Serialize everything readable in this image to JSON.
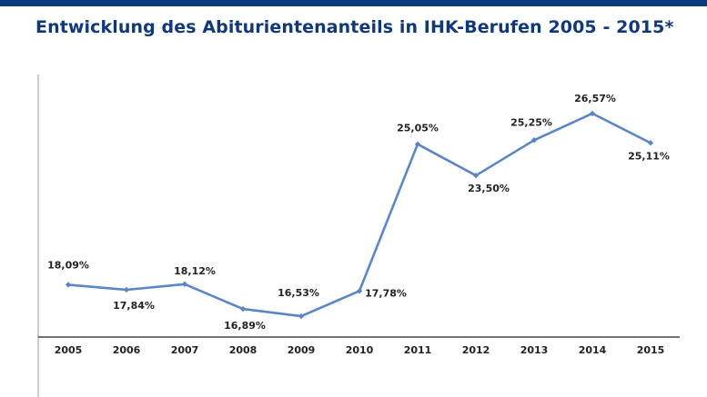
{
  "title": "Entwicklung des Abiturientenanteils in IHK-Berufen 2005 - 2015*",
  "colors": {
    "top_bar": "#0b3a7e",
    "title": "#10387a",
    "line": "#5b86c6",
    "axis": "#444444",
    "label": "#222222"
  },
  "chart_data": {
    "type": "line",
    "title": "Entwicklung des Abiturientenanteils in IHK-Berufen 2005 - 2015*",
    "xlabel": "",
    "ylabel": "",
    "categories": [
      "2005",
      "2006",
      "2007",
      "2008",
      "2009",
      "2010",
      "2011",
      "2012",
      "2013",
      "2014",
      "2015"
    ],
    "values": [
      18.09,
      17.84,
      18.12,
      16.89,
      16.53,
      17.78,
      25.05,
      23.5,
      25.25,
      26.57,
      25.11
    ],
    "data_labels": [
      "18,09%",
      "17,84%",
      "18,12%",
      "16,89%",
      "16,53%",
      "17,78%",
      "25,05%",
      "23,50%",
      "25,25%",
      "26,57%",
      "25,11%"
    ],
    "ylim": [
      15.5,
      28.5
    ],
    "grid": false,
    "legend": "none"
  }
}
